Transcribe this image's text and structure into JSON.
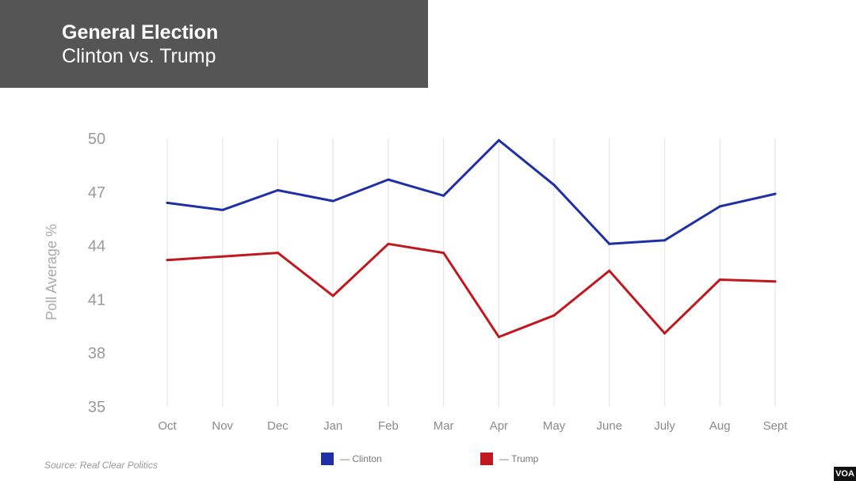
{
  "header": {
    "title": "General Election",
    "subtitle": "Clinton vs. Trump"
  },
  "source": "Source: Real Clear Politics",
  "badge": "VOA",
  "legend": [
    {
      "label": "— Clinton",
      "color": "#1f2fa8"
    },
    {
      "label": "— Trump",
      "color": "#c1181f"
    }
  ],
  "chart_data": {
    "type": "line",
    "x": [
      "Oct",
      "Nov",
      "Dec",
      "Jan",
      "Feb",
      "Mar",
      "Apr",
      "May",
      "June",
      "July",
      "Aug",
      "Sept"
    ],
    "series": [
      {
        "name": "Clinton",
        "color": "#1f2fa8",
        "values": [
          46.4,
          46.0,
          47.1,
          46.5,
          47.7,
          46.8,
          49.9,
          47.4,
          44.1,
          44.3,
          46.2,
          46.9
        ]
      },
      {
        "name": "Trump",
        "color": "#c1181f",
        "values": [
          43.2,
          43.4,
          43.6,
          41.2,
          44.1,
          43.6,
          38.9,
          40.1,
          42.6,
          39.1,
          42.1,
          42.0
        ]
      }
    ],
    "ylabel": "Poll Average %",
    "ylim": [
      35,
      50
    ],
    "yticks": [
      35,
      38,
      41,
      44,
      47,
      50
    ],
    "grid": "vertical",
    "legend_position": "bottom"
  }
}
